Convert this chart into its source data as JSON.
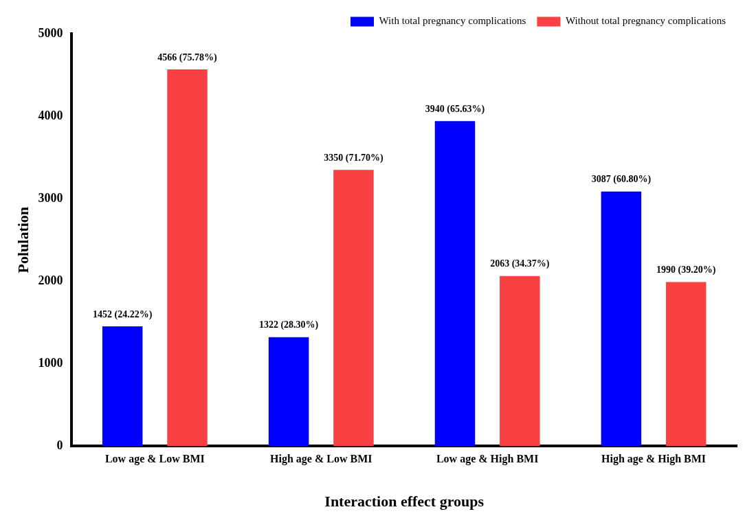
{
  "chart_data": {
    "type": "bar",
    "xlabel": "Interaction effect groups",
    "ylabel": "Polulation",
    "categories": [
      "Low age & Low BMI",
      "High age & Low BMI",
      "Low age & High BMI",
      "High age & High BMI"
    ],
    "series": [
      {
        "name": "With total pregnancy complications",
        "color": "#0000ff",
        "values": [
          1452,
          1322,
          3940,
          3087
        ],
        "value_labels": [
          "1452 (24.22%)",
          "1322 (28.30%)",
          "3940 (65.63%)",
          "3087 (60.80%)"
        ]
      },
      {
        "name": "Without total pregnancy complications",
        "color": "#f94144",
        "values": [
          4566,
          3350,
          2063,
          1990
        ],
        "value_labels": [
          "4566 (75.78%)",
          "3350 (71.70%)",
          "2063 (34.37%)",
          "1990 (39.20%)"
        ]
      }
    ],
    "ylim": [
      0,
      5000
    ],
    "yticks": [
      0,
      1000,
      2000,
      3000,
      4000,
      5000
    ],
    "grid": false,
    "legend": "top right"
  }
}
